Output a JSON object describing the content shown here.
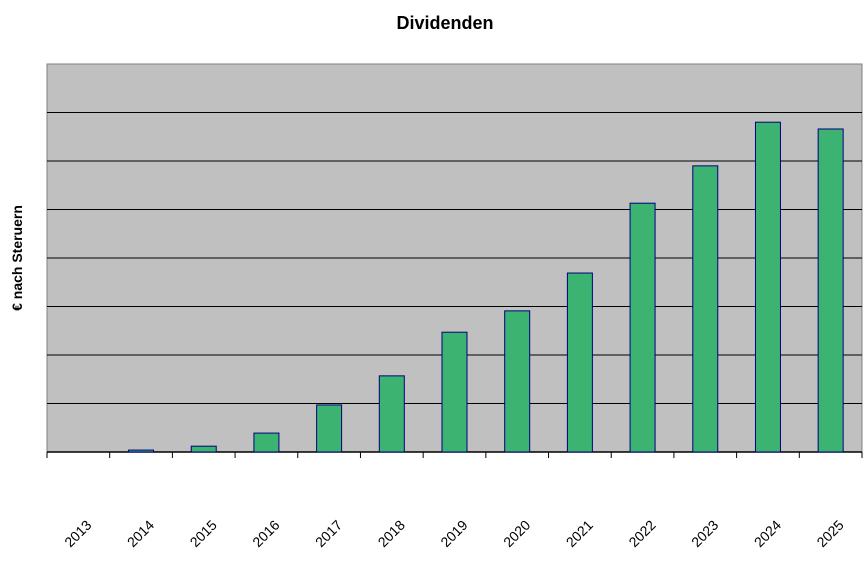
{
  "chart_data": {
    "type": "bar",
    "title": "Dividenden",
    "xlabel": "",
    "ylabel": "€ nach Steruern",
    "categories": [
      "2013",
      "2014",
      "2015",
      "2016",
      "2017",
      "2018",
      "2019",
      "2020",
      "2021",
      "2022",
      "2023",
      "2024",
      "2025"
    ],
    "values": [
      0,
      0.04,
      0.12,
      0.39,
      0.97,
      1.57,
      2.47,
      2.91,
      3.69,
      5.13,
      5.9,
      6.8,
      6.66
    ],
    "ylim": [
      0,
      8
    ],
    "y_tick_labels_shown": false,
    "grid": true,
    "legend": "none",
    "colors": {
      "bar_fill": "#3CB371",
      "bar_edge": "#000080",
      "plot_background": "#C0C0C0",
      "gridline": "#000000"
    }
  }
}
